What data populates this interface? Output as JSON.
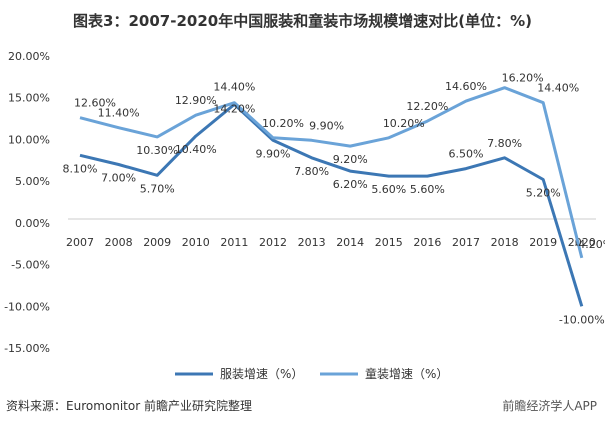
{
  "title": "图表3：2007-2020年中国服装和童装市场规模增速对比(单位：%)",
  "source": "资料来源：Euromonitor 前瞻产业研究院整理",
  "watermark": "前瞻经济学人APP",
  "chart_data": {
    "type": "line",
    "x": [
      "2007",
      "2008",
      "2009",
      "2010",
      "2011",
      "2012",
      "2013",
      "2014",
      "2015",
      "2016",
      "2017",
      "2018",
      "2019",
      "2020"
    ],
    "ylim": [
      -15,
      20
    ],
    "yticks": [
      -15,
      -10,
      -5,
      0,
      5,
      10,
      15,
      20
    ],
    "ytick_labels": [
      "-15.00%",
      "-10.00%",
      "-5.00%",
      "0.00%",
      "5.00%",
      "10.00%",
      "15.00%",
      "20.00%"
    ],
    "legend_position": "bottom",
    "grid": false,
    "series": [
      {
        "name": "服装增速（%）",
        "color": "#3c77b4",
        "values": [
          8.1,
          7.0,
          5.7,
          10.4,
          14.2,
          9.9,
          7.8,
          6.2,
          5.6,
          5.6,
          6.5,
          7.8,
          5.2,
          -10.0
        ],
        "labels": [
          "8.10%",
          "7.00%",
          "5.70%",
          "10.40%",
          "14.20%",
          "9.90%",
          "7.80%",
          "6.20%",
          "5.60%",
          "5.60%",
          "6.50%",
          "7.80%",
          "5.20%",
          "-10.00%"
        ]
      },
      {
        "name": "童装增速（%）",
        "color": "#6aa3d8",
        "values": [
          12.6,
          11.4,
          10.3,
          12.9,
          14.4,
          10.2,
          9.9,
          9.2,
          10.2,
          12.2,
          14.6,
          16.2,
          14.4,
          -4.2
        ],
        "labels": [
          "12.60%",
          "11.40%",
          "10.30%",
          "12.90%",
          "14.40%",
          "10.20%",
          "9.90%",
          "9.20%",
          "10.20%",
          "12.20%",
          "14.60%",
          "16.20%",
          "14.40%",
          "-4.20%"
        ]
      }
    ]
  }
}
